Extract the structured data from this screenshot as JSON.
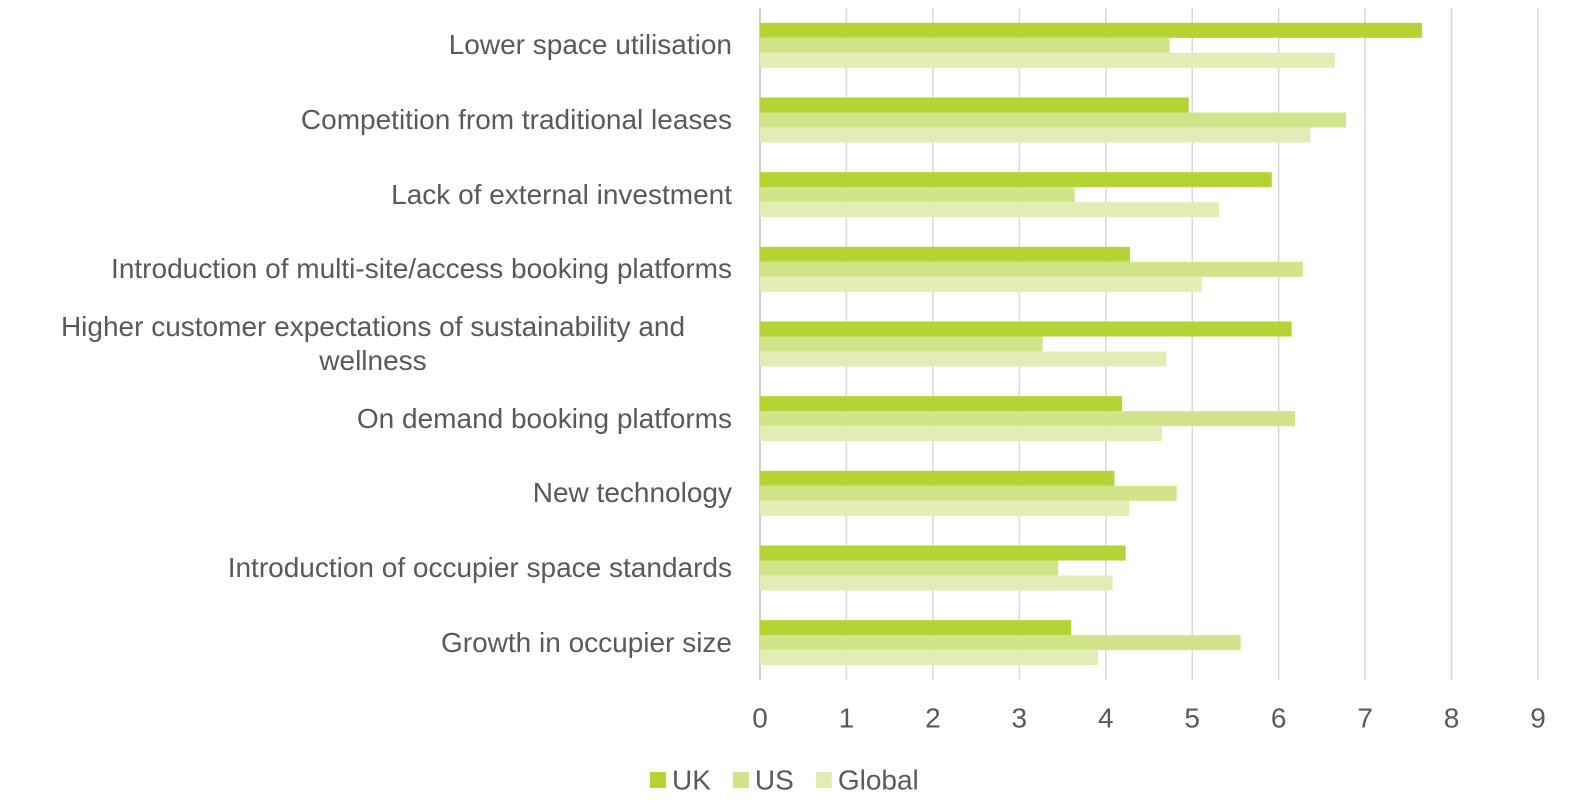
{
  "chart_data": {
    "type": "bar",
    "orientation": "horizontal",
    "categories": [
      "Lower space utilisation",
      "Competition from traditional leases",
      "Lack of external investment",
      "Introduction of multi-site/access booking platforms",
      "Higher customer expectations of sustainability and wellness",
      "On demand booking platforms",
      "New technology",
      "Introduction of occupier space standards",
      "Growth in occupier size"
    ],
    "series": [
      {
        "name": "UK",
        "color": "#b5d334",
        "values": [
          7.66,
          4.96,
          5.92,
          4.28,
          6.15,
          4.19,
          4.1,
          4.23,
          3.6
        ]
      },
      {
        "name": "US",
        "color": "#d1e489",
        "values": [
          4.74,
          6.78,
          3.64,
          6.28,
          3.27,
          6.19,
          4.82,
          3.45,
          5.56
        ]
      },
      {
        "name": "Global",
        "color": "#e2edb6",
        "values": [
          6.65,
          6.37,
          5.31,
          5.11,
          4.7,
          4.65,
          4.27,
          4.08,
          3.91
        ]
      }
    ],
    "xlim": [
      0,
      9
    ],
    "xticks": [
      0,
      1,
      2,
      3,
      4,
      5,
      6,
      7,
      8,
      9
    ],
    "grid": true,
    "legend": "bottom"
  }
}
